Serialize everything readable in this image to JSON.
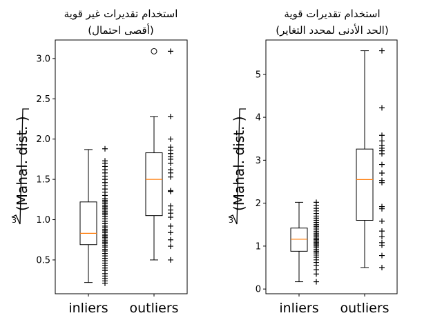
{
  "chart_data": [
    {
      "type": "box",
      "title_line1": "استخدام تقديرات غير قوية",
      "title_line2": "(أقصى احتمال)",
      "ylabel_root": "3",
      "ylabel": "(Mahal. dist. )",
      "ylim": [
        0.08,
        3.23
      ],
      "yticks": [
        0.5,
        1.0,
        1.5,
        2.0,
        2.5,
        3.0
      ],
      "ytick_labels": [
        "0.5",
        "1.0",
        "1.5",
        "2.0",
        "2.5",
        "3.0"
      ],
      "categories": [
        "inliers",
        "outliers"
      ],
      "boxes": [
        {
          "name": "inliers",
          "whisker_low": 0.22,
          "q1": 0.69,
          "median": 0.83,
          "q3": 1.22,
          "whisker_high": 1.87,
          "fliers": []
        },
        {
          "name": "outliers",
          "whisker_low": 0.5,
          "q1": 1.05,
          "median": 1.5,
          "q3": 1.83,
          "whisker_high": 2.28,
          "fliers": [
            3.09
          ]
        }
      ],
      "points": [
        [
          0.21,
          0.24,
          0.27,
          0.3,
          0.33,
          0.37,
          0.4,
          0.43,
          0.46,
          0.49,
          0.52,
          0.55,
          0.58,
          0.61,
          0.63,
          0.66,
          0.68,
          0.7,
          0.72,
          0.74,
          0.76,
          0.78,
          0.8,
          0.82,
          0.84,
          0.86,
          0.88,
          0.9,
          0.92,
          0.95,
          0.98,
          1.01,
          1.04,
          1.06,
          1.08,
          1.1,
          1.12,
          1.14,
          1.16,
          1.18,
          1.2,
          1.22,
          1.24,
          1.26,
          1.3,
          1.34,
          1.38,
          1.42,
          1.46,
          1.5,
          1.54,
          1.58,
          1.62,
          1.66,
          1.7,
          1.73,
          1.88
        ],
        [
          0.5,
          0.67,
          0.75,
          0.84,
          0.92,
          1.03,
          1.08,
          1.12,
          1.17,
          1.35,
          1.36,
          1.53,
          1.58,
          1.62,
          1.7,
          1.75,
          1.78,
          1.82,
          1.86,
          1.9,
          2.0,
          2.28,
          3.09
        ]
      ]
    },
    {
      "type": "box",
      "title_line1": "استخدام تقديرات قوية",
      "title_line2": "(الحد الأدنى لمحدد التغاير)",
      "ylabel_root": "3",
      "ylabel": "(Mahal. dist. )",
      "ylim": [
        -0.11,
        5.8
      ],
      "yticks": [
        0,
        1,
        2,
        3,
        4,
        5
      ],
      "ytick_labels": [
        "0",
        "1",
        "2",
        "3",
        "4",
        "5"
      ],
      "categories": [
        "inliers",
        "outliers"
      ],
      "boxes": [
        {
          "name": "inliers",
          "whisker_low": 0.17,
          "q1": 0.88,
          "median": 1.16,
          "q3": 1.42,
          "whisker_high": 2.02,
          "fliers": []
        },
        {
          "name": "outliers",
          "whisker_low": 0.5,
          "q1": 1.6,
          "median": 2.55,
          "q3": 3.26,
          "whisker_high": 5.55,
          "fliers": []
        }
      ],
      "points": [
        [
          0.17,
          0.35,
          0.45,
          0.55,
          0.62,
          0.68,
          0.74,
          0.79,
          0.84,
          0.88,
          0.92,
          0.96,
          1.0,
          1.03,
          1.06,
          1.09,
          1.12,
          1.15,
          1.18,
          1.21,
          1.24,
          1.27,
          1.3,
          1.34,
          1.38,
          1.42,
          1.46,
          1.5,
          1.55,
          1.6,
          1.65,
          1.7,
          1.76,
          1.82,
          1.88,
          1.95,
          2.02
        ],
        [
          0.5,
          0.78,
          1.02,
          1.08,
          1.22,
          1.35,
          1.58,
          1.87,
          1.92,
          2.48,
          2.53,
          2.7,
          2.9,
          3.15,
          3.22,
          3.28,
          3.35,
          3.45,
          3.58,
          4.22,
          5.55
        ]
      ]
    }
  ]
}
